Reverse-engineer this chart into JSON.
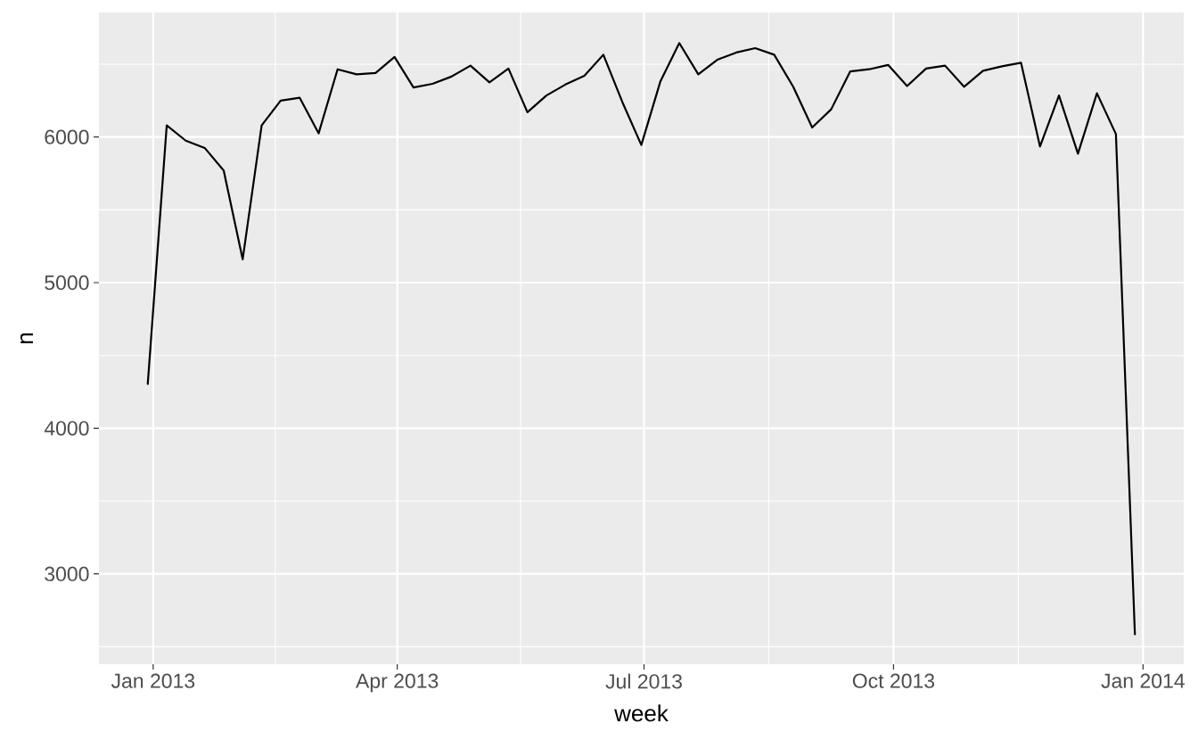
{
  "chart_data": {
    "type": "line",
    "xlabel": "week",
    "ylabel": "n",
    "x": [
      "2012-12-30",
      "2013-01-06",
      "2013-01-13",
      "2013-01-20",
      "2013-01-27",
      "2013-02-03",
      "2013-02-10",
      "2013-02-17",
      "2013-02-24",
      "2013-03-03",
      "2013-03-10",
      "2013-03-17",
      "2013-03-24",
      "2013-03-31",
      "2013-04-07",
      "2013-04-14",
      "2013-04-21",
      "2013-04-28",
      "2013-05-05",
      "2013-05-12",
      "2013-05-19",
      "2013-05-26",
      "2013-06-02",
      "2013-06-09",
      "2013-06-16",
      "2013-06-23",
      "2013-06-30",
      "2013-07-07",
      "2013-07-14",
      "2013-07-21",
      "2013-07-28",
      "2013-08-04",
      "2013-08-11",
      "2013-08-18",
      "2013-08-25",
      "2013-09-01",
      "2013-09-08",
      "2013-09-15",
      "2013-09-22",
      "2013-09-29",
      "2013-10-06",
      "2013-10-13",
      "2013-10-20",
      "2013-10-27",
      "2013-11-03",
      "2013-11-10",
      "2013-11-17",
      "2013-11-24",
      "2013-12-01",
      "2013-12-08",
      "2013-12-15",
      "2013-12-22",
      "2013-12-29"
    ],
    "series": [
      {
        "color": "#000000",
        "values": [
          4305,
          6080,
          5975,
          5925,
          5770,
          5160,
          6080,
          6250,
          6270,
          6025,
          6465,
          6430,
          6440,
          6550,
          6340,
          6365,
          6415,
          6490,
          6375,
          6470,
          6170,
          6285,
          6360,
          6420,
          6565,
          6240,
          5945,
          6380,
          6645,
          6430,
          6530,
          6580,
          6610,
          6565,
          6345,
          6065,
          6190,
          6450,
          6465,
          6495,
          6350,
          6470,
          6490,
          6345,
          6455,
          6485,
          6510,
          5935,
          6285,
          5885,
          6300,
          6020,
          2585
        ]
      }
    ],
    "xlim": [
      "2012-12-12",
      "2014-01-16"
    ],
    "ylim": [
      2380,
      6855
    ],
    "xticks": [
      {
        "value": "2013-01-01",
        "label": "Jan 2013"
      },
      {
        "value": "2013-04-01",
        "label": "Apr 2013"
      },
      {
        "value": "2013-07-01",
        "label": "Jul 2013"
      },
      {
        "value": "2013-10-01",
        "label": "Oct 2013"
      },
      {
        "value": "2014-01-01",
        "label": "Jan 2014"
      }
    ],
    "yticks": [
      3000,
      4000,
      5000,
      6000
    ],
    "grid": true,
    "line_style": "solid"
  }
}
